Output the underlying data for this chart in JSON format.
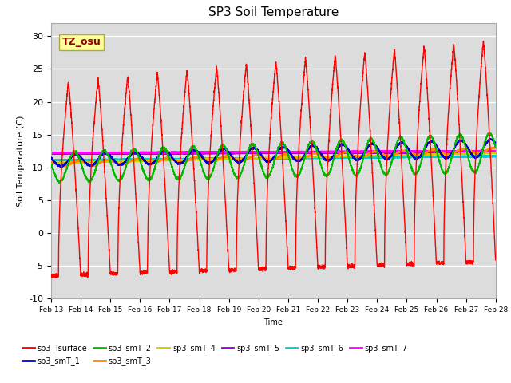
{
  "title": "SP3 Soil Temperature",
  "xlabel": "Time",
  "ylabel": "Soil Temperature (C)",
  "ylim": [
    -10,
    32
  ],
  "xlim": [
    0,
    15
  ],
  "background_color": "#dcdcdc",
  "annotation_text": "TZ_osu",
  "annotation_color": "#8b0000",
  "annotation_bg": "#ffff99",
  "x_tick_labels": [
    "Feb 13",
    "Feb 14",
    "Feb 15",
    "Feb 16",
    "Feb 17",
    "Feb 18",
    "Feb 19",
    "Feb 20",
    "Feb 21",
    "Feb 22",
    "Feb 23",
    "Feb 24",
    "Feb 25",
    "Feb 26",
    "Feb 27",
    "Feb 28"
  ],
  "legend_entries": [
    {
      "label": "sp3_Tsurface",
      "color": "#ff0000"
    },
    {
      "label": "sp3_smT_1",
      "color": "#0000cc"
    },
    {
      "label": "sp3_smT_2",
      "color": "#00bb00"
    },
    {
      "label": "sp3_smT_3",
      "color": "#ff8800"
    },
    {
      "label": "sp3_smT_4",
      "color": "#cccc00"
    },
    {
      "label": "sp3_smT_5",
      "color": "#9900cc"
    },
    {
      "label": "sp3_smT_6",
      "color": "#00cccc"
    },
    {
      "label": "sp3_smT_7",
      "color": "#ff00ff"
    }
  ]
}
